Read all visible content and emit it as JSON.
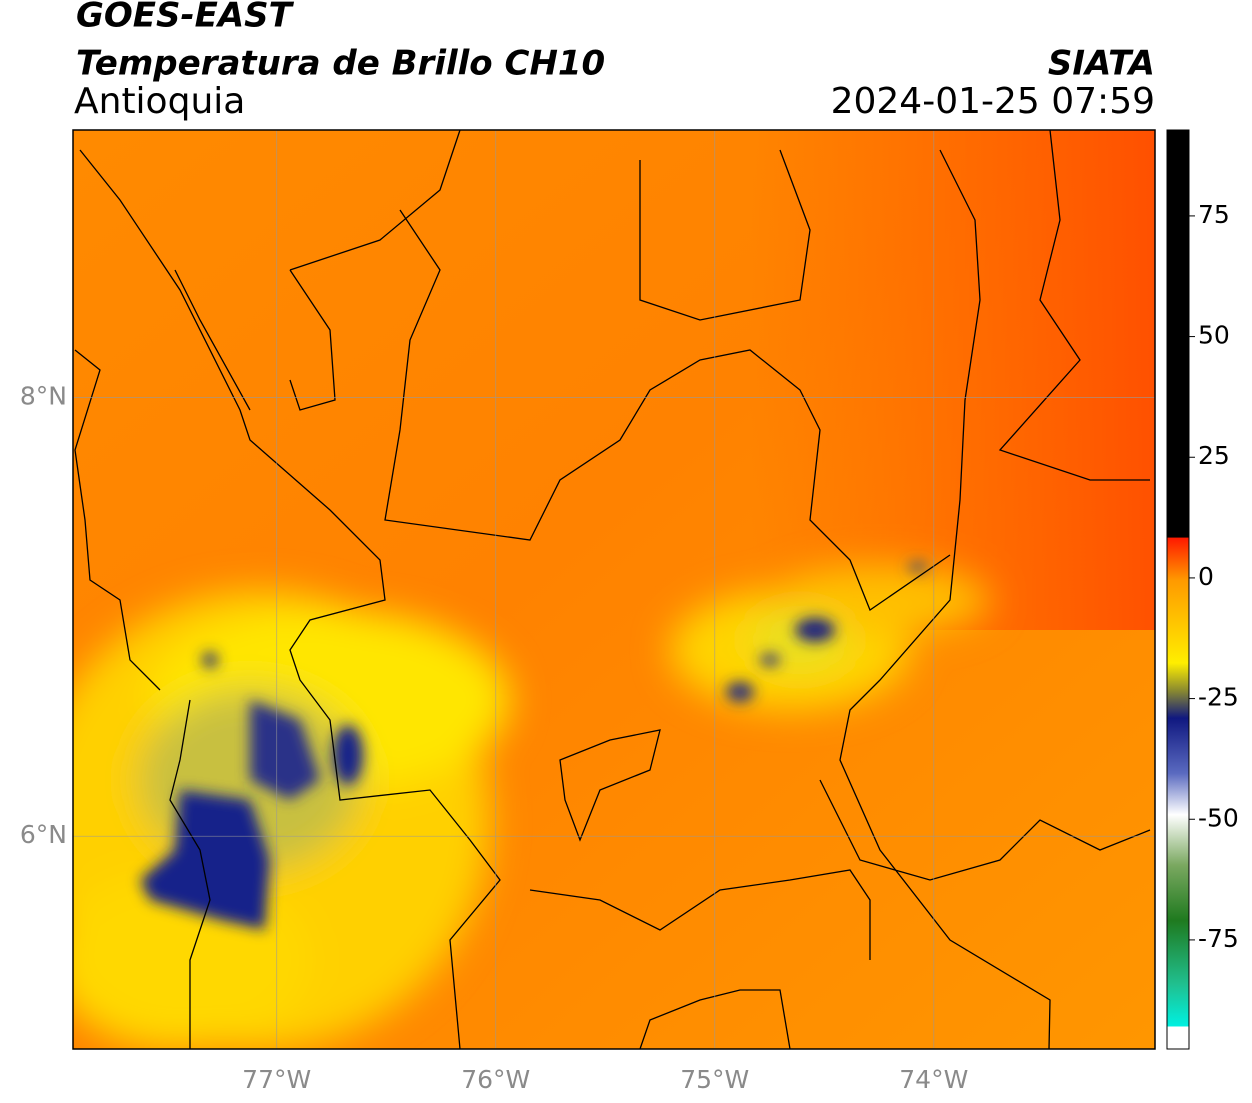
{
  "header": {
    "title": "GOES-EAST",
    "subtitle": "Temperatura de Brillo CH10",
    "region": "Antioquia",
    "source": "SIATA",
    "datetime": "2024-01-25 07:59"
  },
  "map": {
    "lonlim": [
      -77.93,
      -72.99
    ],
    "latlim": [
      5.03,
      9.22
    ],
    "lon_ticks": [
      {
        "value": -77,
        "label": "77°W"
      },
      {
        "value": -76,
        "label": "76°W"
      },
      {
        "value": -75,
        "label": "75°W"
      },
      {
        "value": -74,
        "label": "74°W"
      }
    ],
    "lat_ticks": [
      {
        "value": 8,
        "label": "8°N"
      },
      {
        "value": 6,
        "label": "6°N"
      }
    ]
  },
  "colorbar": {
    "lim": [
      -97.6,
      92.8
    ],
    "ticks": [
      75,
      50,
      25,
      0,
      -25,
      -50,
      -75
    ]
  }
}
